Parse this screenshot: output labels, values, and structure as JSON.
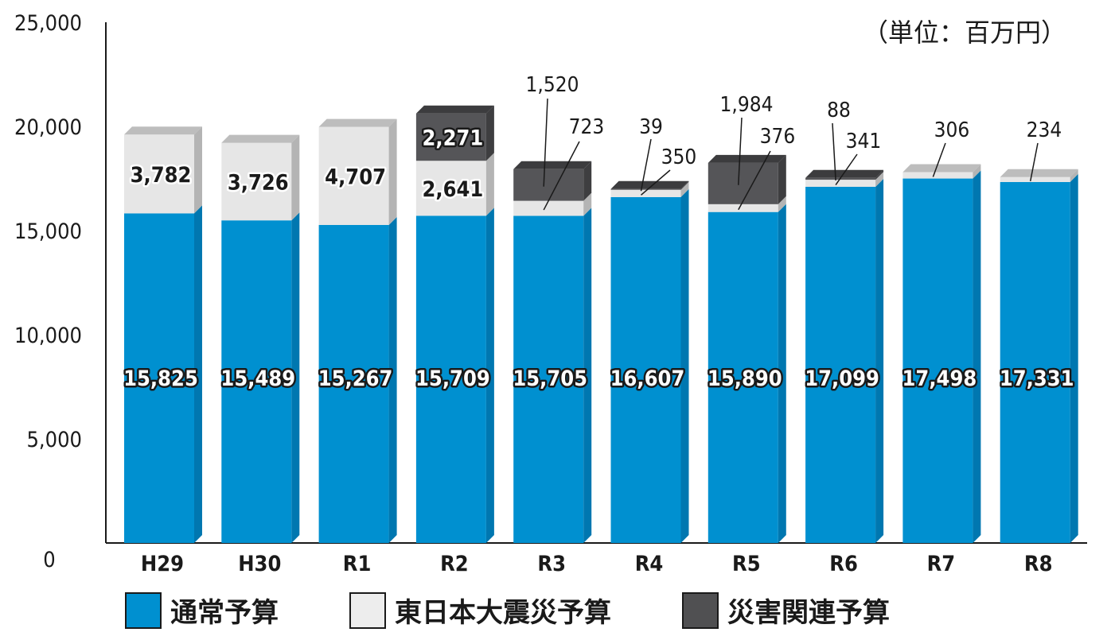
{
  "chart_data": {
    "type": "bar",
    "stacked": true,
    "unit_label": "（単位：百万円）",
    "categories": [
      "H29",
      "H30",
      "R1",
      "R2",
      "R3",
      "R4",
      "R5",
      "R6",
      "R7",
      "R8"
    ],
    "ylim": [
      0,
      25000
    ],
    "yticks": [
      "0",
      "5,000",
      "10,000",
      "15,000",
      "20,000",
      "25,000"
    ],
    "ytick_values": [
      0,
      5000,
      10000,
      15000,
      20000,
      25000
    ],
    "grid": false,
    "legend_position": "bottom",
    "series": [
      {
        "name": "通常予算",
        "color": "#0090d0",
        "values": [
          15825,
          15489,
          15267,
          15709,
          15705,
          16607,
          15890,
          17099,
          17498,
          17331
        ],
        "labels": [
          "15,825",
          "15,489",
          "15,267",
          "15,709",
          "15,705",
          "16,607",
          "15,890",
          "17,099",
          "17,498",
          "17,331"
        ]
      },
      {
        "name": "東日本大震災予算",
        "color": "#e6e6e6",
        "values": [
          3782,
          3726,
          4707,
          2641,
          723,
          350,
          376,
          341,
          306,
          234
        ],
        "labels": [
          "3,782",
          "3,726",
          "4,707",
          "2,641",
          "723",
          "350",
          "376",
          "341",
          "306",
          "234"
        ]
      },
      {
        "name": "災害関連予算",
        "color": "#555558",
        "values": [
          0,
          0,
          0,
          2271,
          1520,
          39,
          1984,
          88,
          0,
          0
        ],
        "labels": [
          "",
          "",
          "",
          "2,271",
          "1,520",
          "39",
          "1,984",
          "88",
          "",
          ""
        ]
      }
    ]
  }
}
